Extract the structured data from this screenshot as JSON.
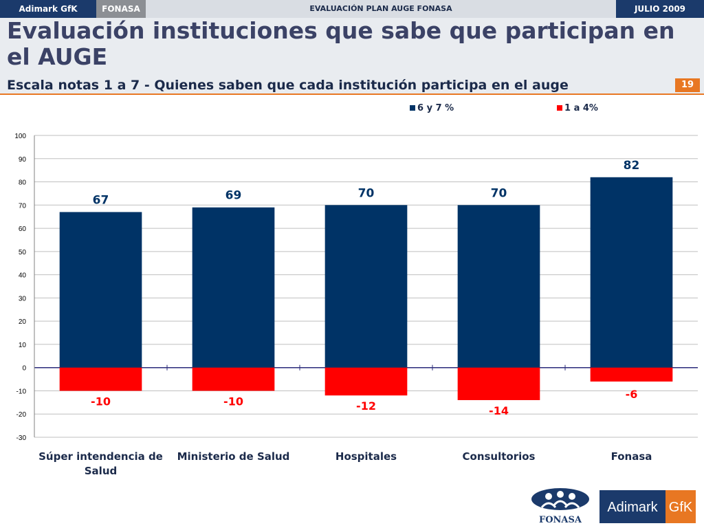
{
  "topbar": {
    "left_brand": "Adimark GfK",
    "client": "FONASA",
    "center_title": "EVALUACIÓN PLAN AUGE FONASA",
    "date": "JULIO 2009"
  },
  "header": {
    "title": "Evaluación instituciones que sabe que participan en el AUGE",
    "subtitle": "Escala notas 1 a 7 - Quienes saben que cada institución participa en el auge",
    "page_number": "19"
  },
  "colors": {
    "positive": "#003366",
    "negative": "#ff0000",
    "accent": "#e87722"
  },
  "chart_data": {
    "type": "bar",
    "stacked": true,
    "categories": [
      "Súper intendencia de Salud",
      "Ministerio de Salud",
      "Hospitales",
      "Consultorios",
      "Fonasa"
    ],
    "series": [
      {
        "name": "6 y 7 %",
        "values": [
          67,
          69,
          70,
          70,
          82
        ]
      },
      {
        "name": "1 a 4%",
        "values": [
          -10,
          -10,
          -12,
          -14,
          -6
        ]
      }
    ],
    "ylim": [
      -30,
      100
    ],
    "yticks": [
      100,
      90,
      80,
      70,
      60,
      50,
      40,
      30,
      20,
      10,
      0,
      -10,
      -20,
      -30
    ],
    "grid": true,
    "legend": "top-center"
  },
  "logos": {
    "fonasa_text": "FONASA",
    "adimark_text": "Adimark",
    "gfk_text": "GfK"
  }
}
